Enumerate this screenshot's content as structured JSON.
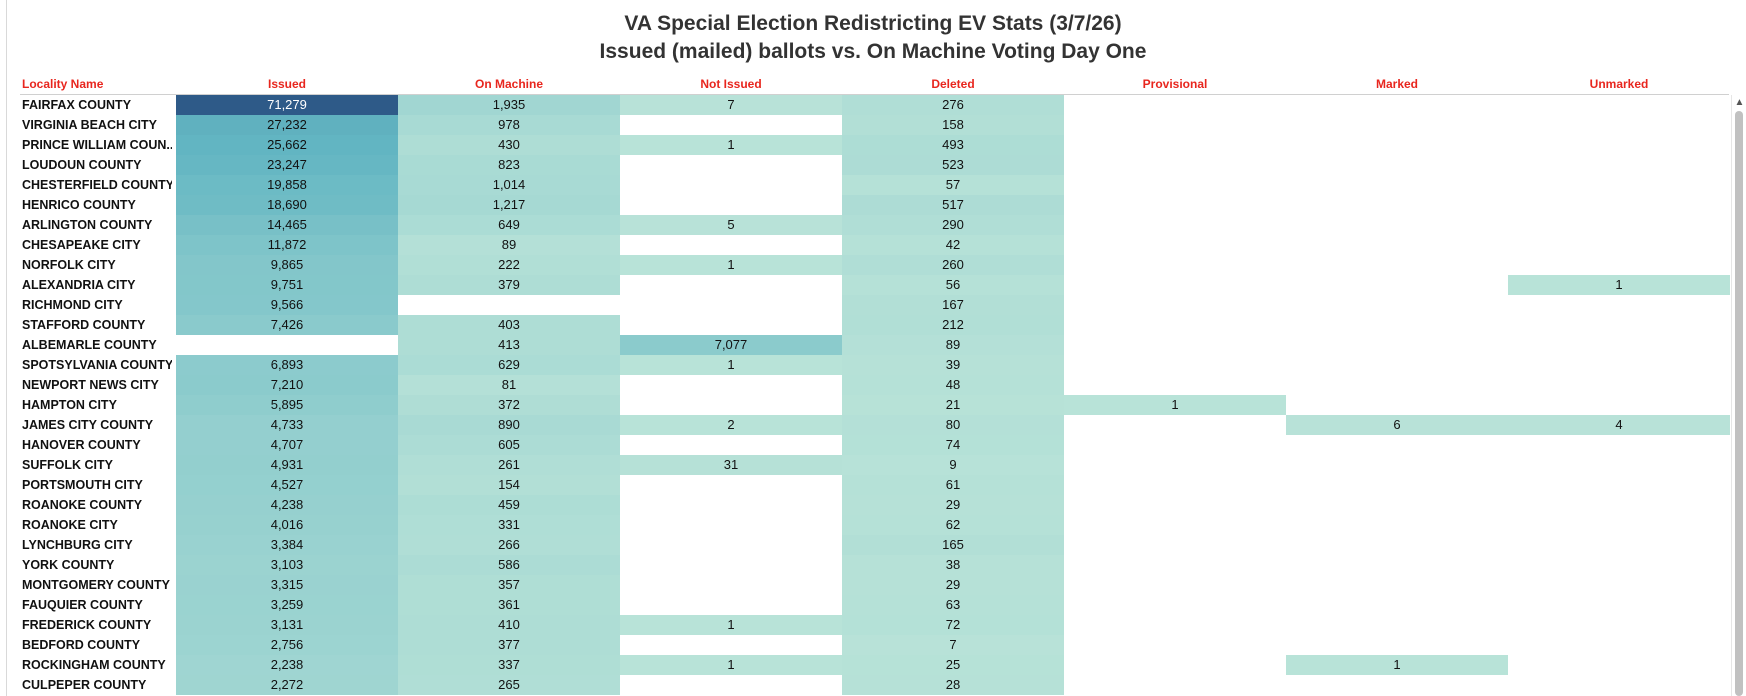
{
  "chart_data": {
    "type": "table",
    "title": "VA Special Election Redistricting EV Stats (3/7/26)",
    "subtitle": "Issued (mailed) ballots vs. On Machine Voting Day One",
    "columns": [
      "Locality Name",
      "Issued",
      "On Machine",
      "Not Issued",
      "Deleted",
      "Provisional",
      "Marked",
      "Unmarked"
    ],
    "rows": [
      {
        "locality": "FAIRFAX COUNTY",
        "issued": "71,279",
        "on_machine": "1,935",
        "not_issued": "7",
        "deleted": "276",
        "provisional": "",
        "marked": "",
        "unmarked": ""
      },
      {
        "locality": "VIRGINIA BEACH CITY",
        "issued": "27,232",
        "on_machine": "978",
        "not_issued": "",
        "deleted": "158",
        "provisional": "",
        "marked": "",
        "unmarked": ""
      },
      {
        "locality": "PRINCE WILLIAM COUN..",
        "issued": "25,662",
        "on_machine": "430",
        "not_issued": "1",
        "deleted": "493",
        "provisional": "",
        "marked": "",
        "unmarked": ""
      },
      {
        "locality": "LOUDOUN COUNTY",
        "issued": "23,247",
        "on_machine": "823",
        "not_issued": "",
        "deleted": "523",
        "provisional": "",
        "marked": "",
        "unmarked": ""
      },
      {
        "locality": "CHESTERFIELD COUNTY",
        "issued": "19,858",
        "on_machine": "1,014",
        "not_issued": "",
        "deleted": "57",
        "provisional": "",
        "marked": "",
        "unmarked": ""
      },
      {
        "locality": "HENRICO COUNTY",
        "issued": "18,690",
        "on_machine": "1,217",
        "not_issued": "",
        "deleted": "517",
        "provisional": "",
        "marked": "",
        "unmarked": ""
      },
      {
        "locality": "ARLINGTON COUNTY",
        "issued": "14,465",
        "on_machine": "649",
        "not_issued": "5",
        "deleted": "290",
        "provisional": "",
        "marked": "",
        "unmarked": ""
      },
      {
        "locality": "CHESAPEAKE CITY",
        "issued": "11,872",
        "on_machine": "89",
        "not_issued": "",
        "deleted": "42",
        "provisional": "",
        "marked": "",
        "unmarked": ""
      },
      {
        "locality": "NORFOLK CITY",
        "issued": "9,865",
        "on_machine": "222",
        "not_issued": "1",
        "deleted": "260",
        "provisional": "",
        "marked": "",
        "unmarked": ""
      },
      {
        "locality": "ALEXANDRIA CITY",
        "issued": "9,751",
        "on_machine": "379",
        "not_issued": "",
        "deleted": "56",
        "provisional": "",
        "marked": "",
        "unmarked": "1"
      },
      {
        "locality": "RICHMOND CITY",
        "issued": "9,566",
        "on_machine": "",
        "not_issued": "",
        "deleted": "167",
        "provisional": "",
        "marked": "",
        "unmarked": ""
      },
      {
        "locality": "STAFFORD COUNTY",
        "issued": "7,426",
        "on_machine": "403",
        "not_issued": "",
        "deleted": "212",
        "provisional": "",
        "marked": "",
        "unmarked": ""
      },
      {
        "locality": "ALBEMARLE COUNTY",
        "issued": "",
        "on_machine": "413",
        "not_issued": "7,077",
        "deleted": "89",
        "provisional": "",
        "marked": "",
        "unmarked": ""
      },
      {
        "locality": "SPOTSYLVANIA COUNTY",
        "issued": "6,893",
        "on_machine": "629",
        "not_issued": "1",
        "deleted": "39",
        "provisional": "",
        "marked": "",
        "unmarked": ""
      },
      {
        "locality": "NEWPORT NEWS CITY",
        "issued": "7,210",
        "on_machine": "81",
        "not_issued": "",
        "deleted": "48",
        "provisional": "",
        "marked": "",
        "unmarked": ""
      },
      {
        "locality": "HAMPTON CITY",
        "issued": "5,895",
        "on_machine": "372",
        "not_issued": "",
        "deleted": "21",
        "provisional": "1",
        "marked": "",
        "unmarked": ""
      },
      {
        "locality": "JAMES CITY COUNTY",
        "issued": "4,733",
        "on_machine": "890",
        "not_issued": "2",
        "deleted": "80",
        "provisional": "",
        "marked": "6",
        "unmarked": "4"
      },
      {
        "locality": "HANOVER COUNTY",
        "issued": "4,707",
        "on_machine": "605",
        "not_issued": "",
        "deleted": "74",
        "provisional": "",
        "marked": "",
        "unmarked": ""
      },
      {
        "locality": "SUFFOLK CITY",
        "issued": "4,931",
        "on_machine": "261",
        "not_issued": "31",
        "deleted": "9",
        "provisional": "",
        "marked": "",
        "unmarked": ""
      },
      {
        "locality": "PORTSMOUTH CITY",
        "issued": "4,527",
        "on_machine": "154",
        "not_issued": "",
        "deleted": "61",
        "provisional": "",
        "marked": "",
        "unmarked": ""
      },
      {
        "locality": "ROANOKE COUNTY",
        "issued": "4,238",
        "on_machine": "459",
        "not_issued": "",
        "deleted": "29",
        "provisional": "",
        "marked": "",
        "unmarked": ""
      },
      {
        "locality": "ROANOKE CITY",
        "issued": "4,016",
        "on_machine": "331",
        "not_issued": "",
        "deleted": "62",
        "provisional": "",
        "marked": "",
        "unmarked": ""
      },
      {
        "locality": "LYNCHBURG CITY",
        "issued": "3,384",
        "on_machine": "266",
        "not_issued": "",
        "deleted": "165",
        "provisional": "",
        "marked": "",
        "unmarked": ""
      },
      {
        "locality": "YORK COUNTY",
        "issued": "3,103",
        "on_machine": "586",
        "not_issued": "",
        "deleted": "38",
        "provisional": "",
        "marked": "",
        "unmarked": ""
      },
      {
        "locality": "MONTGOMERY COUNTY",
        "issued": "3,315",
        "on_machine": "357",
        "not_issued": "",
        "deleted": "29",
        "provisional": "",
        "marked": "",
        "unmarked": ""
      },
      {
        "locality": "FAUQUIER COUNTY",
        "issued": "3,259",
        "on_machine": "361",
        "not_issued": "",
        "deleted": "63",
        "provisional": "",
        "marked": "",
        "unmarked": ""
      },
      {
        "locality": "FREDERICK COUNTY",
        "issued": "3,131",
        "on_machine": "410",
        "not_issued": "1",
        "deleted": "72",
        "provisional": "",
        "marked": "",
        "unmarked": ""
      },
      {
        "locality": "BEDFORD COUNTY",
        "issued": "2,756",
        "on_machine": "377",
        "not_issued": "",
        "deleted": "7",
        "provisional": "",
        "marked": "",
        "unmarked": ""
      },
      {
        "locality": "ROCKINGHAM COUNTY",
        "issued": "2,238",
        "on_machine": "337",
        "not_issued": "1",
        "deleted": "25",
        "provisional": "",
        "marked": "1",
        "unmarked": ""
      },
      {
        "locality": "CULPEPER COUNTY",
        "issued": "2,272",
        "on_machine": "265",
        "not_issued": "",
        "deleted": "28",
        "provisional": "",
        "marked": "",
        "unmarked": ""
      }
    ],
    "color_scale": {
      "low": "#b9e3d8",
      "mid": "#62b5c2",
      "high": "#2e5a88"
    },
    "header_color": "#e8261e"
  }
}
